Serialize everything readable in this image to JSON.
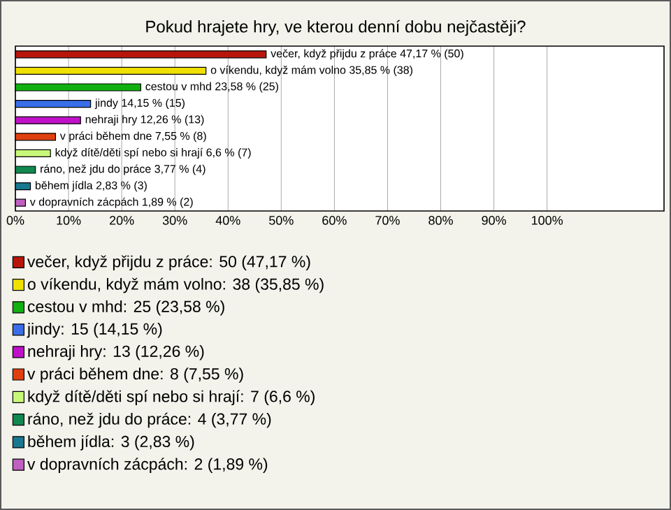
{
  "chart_data": {
    "type": "bar",
    "orientation": "horizontal",
    "title": "Pokud hrajete hry, ve kterou denní dobu nejčastěji?",
    "categories": [
      null,
      null,
      null,
      null,
      null,
      null,
      null,
      null,
      null,
      null
    ],
    "series": [
      {
        "name": "večer, když přijdu z práce: 50 (47,17 %)",
        "color": "#b8160c",
        "values": [
          47.17,
          null,
          null,
          null,
          null,
          null,
          null,
          null,
          null,
          null
        ],
        "value_labels": [
          "večer, když přijdu z práce 47,17 % (50)",
          null,
          null,
          null,
          null,
          null,
          null,
          null,
          null,
          null
        ]
      },
      {
        "name": "o víkendu, když mám volno: 38 (35,85 %)",
        "color": "#f0e000",
        "values": [
          null,
          35.85,
          null,
          null,
          null,
          null,
          null,
          null,
          null,
          null
        ],
        "value_labels": [
          null,
          "o víkendu, když mám volno 35,85 % (38)",
          null,
          null,
          null,
          null,
          null,
          null,
          null,
          null
        ]
      },
      {
        "name": "cestou v mhd: 25 (23,58 %)",
        "color": "#10b010",
        "values": [
          null,
          null,
          23.58,
          null,
          null,
          null,
          null,
          null,
          null,
          null
        ],
        "value_labels": [
          null,
          null,
          "cestou v mhd 23,58 % (25)",
          null,
          null,
          null,
          null,
          null,
          null,
          null
        ]
      },
      {
        "name": "jindy: 15 (14,15 %)",
        "color": "#3a6ee8",
        "values": [
          null,
          null,
          null,
          14.15,
          null,
          null,
          null,
          null,
          null,
          null
        ],
        "value_labels": [
          null,
          null,
          null,
          "jindy 14,15 % (15)",
          null,
          null,
          null,
          null,
          null,
          null
        ]
      },
      {
        "name": "nehraji hry: 13 (12,26 %)",
        "color": "#c010c8",
        "values": [
          null,
          null,
          null,
          null,
          12.26,
          null,
          null,
          null,
          null,
          null
        ],
        "value_labels": [
          null,
          null,
          null,
          null,
          "nehraji hry 12,26 % (13)",
          null,
          null,
          null,
          null,
          null
        ]
      },
      {
        "name": "v práci během dne: 8 (7,55 %)",
        "color": "#e04010",
        "values": [
          null,
          null,
          null,
          null,
          null,
          7.55,
          null,
          null,
          null,
          null
        ],
        "value_labels": [
          null,
          null,
          null,
          null,
          null,
          "v práci během dne 7,55 % (8)",
          null,
          null,
          null,
          null
        ]
      },
      {
        "name": "když dítě/děti spí nebo si hrají: 7 (6,6 %)",
        "color": "#c8f878",
        "values": [
          null,
          null,
          null,
          null,
          null,
          null,
          6.6,
          null,
          null,
          null
        ],
        "value_labels": [
          null,
          null,
          null,
          null,
          null,
          null,
          "když dítě/děti spí nebo si hrají 6,6 % (7)",
          null,
          null,
          null
        ]
      },
      {
        "name": "ráno, než jdu do práce: 4 (3,77 %)",
        "color": "#108850",
        "values": [
          null,
          null,
          null,
          null,
          null,
          null,
          null,
          3.77,
          null,
          null
        ],
        "value_labels": [
          null,
          null,
          null,
          null,
          null,
          null,
          null,
          "ráno, než jdu do práce 3,77 % (4)",
          null,
          null
        ]
      },
      {
        "name": "během jídla: 3 (2,83 %)",
        "color": "#187890",
        "values": [
          null,
          null,
          null,
          null,
          null,
          null,
          null,
          null,
          2.83,
          null
        ],
        "value_labels": [
          null,
          null,
          null,
          null,
          null,
          null,
          null,
          null,
          "během jídla 2,83 % (3)",
          null
        ]
      },
      {
        "name": "v dopravních zácpách: 2 (1,89 %)",
        "color": "#c060c0",
        "values": [
          null,
          null,
          null,
          null,
          null,
          null,
          null,
          null,
          null,
          1.89
        ],
        "value_labels": [
          null,
          null,
          null,
          null,
          null,
          null,
          null,
          null,
          null,
          "v dopravních zácpách 1,89 % (2)"
        ]
      }
    ],
    "xlim": [
      0,
      122
    ],
    "xticks": [
      {
        "value": 0,
        "label": "0%"
      },
      {
        "value": 10,
        "label": "10%"
      },
      {
        "value": 20,
        "label": "20%"
      },
      {
        "value": 30,
        "label": "30%"
      },
      {
        "value": 40,
        "label": "40%"
      },
      {
        "value": 50,
        "label": "50%"
      },
      {
        "value": 60,
        "label": "60%"
      },
      {
        "value": 70,
        "label": "70%"
      },
      {
        "value": 80,
        "label": "80%"
      },
      {
        "value": 90,
        "label": "90%"
      },
      {
        "value": 100,
        "label": "100%"
      }
    ],
    "grid": "x",
    "legend": "bottom"
  }
}
